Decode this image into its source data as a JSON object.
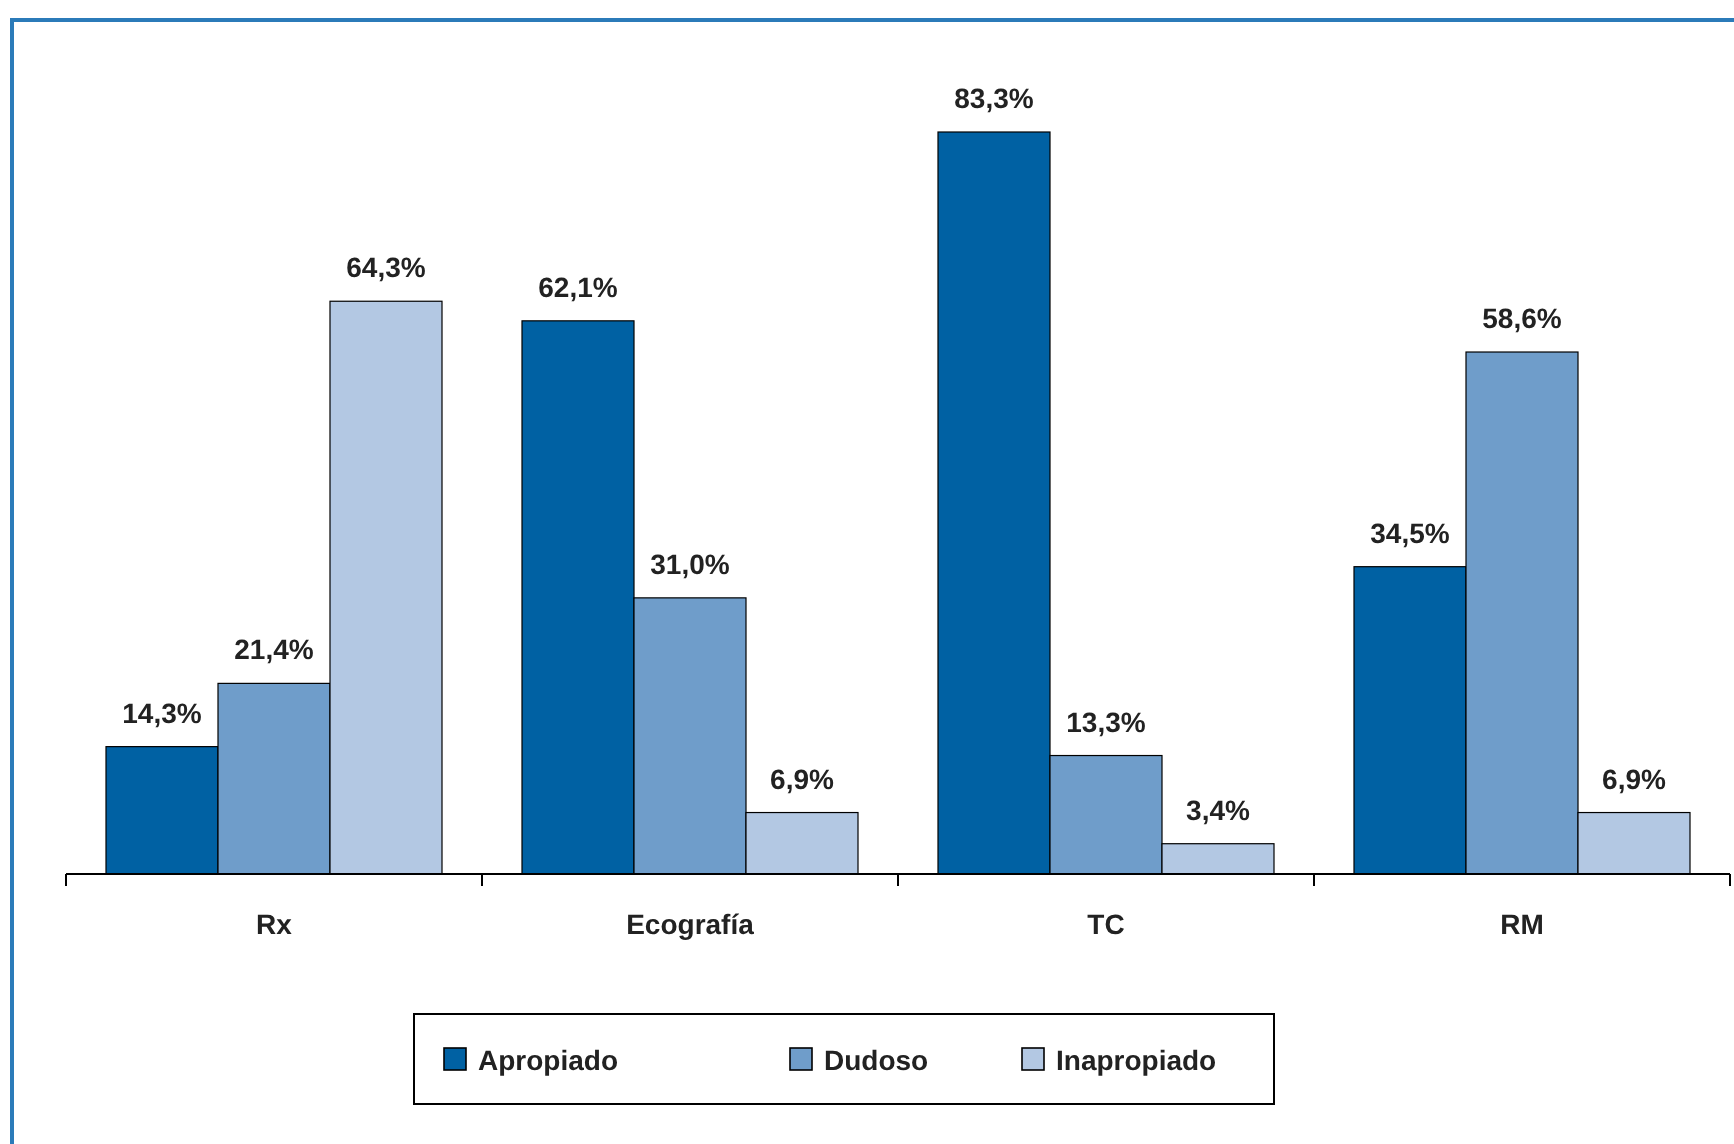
{
  "chart_data": {
    "type": "bar",
    "categories": [
      "Rx",
      "Ecografía",
      "TC",
      "RM"
    ],
    "series": [
      {
        "name": "Apropiado",
        "color": "#0061a3",
        "values": [
          14.3,
          62.1,
          83.3,
          34.5
        ],
        "value_labels": [
          "14,3%",
          "62,1%",
          "83,3%",
          "34,5%"
        ]
      },
      {
        "name": "Dudoso",
        "color": "#6f9dca",
        "values": [
          21.4,
          31.0,
          13.3,
          58.6
        ],
        "value_labels": [
          "21,4%",
          "31,0%",
          "13,3%",
          "58,6%"
        ]
      },
      {
        "name": "Inapropiado",
        "color": "#b3c8e3",
        "values": [
          64.3,
          6.9,
          3.4,
          6.9
        ],
        "value_labels": [
          "64,3%",
          "6,9%",
          "3,4%",
          "6,9%"
        ]
      }
    ],
    "legend": "bottom"
  }
}
